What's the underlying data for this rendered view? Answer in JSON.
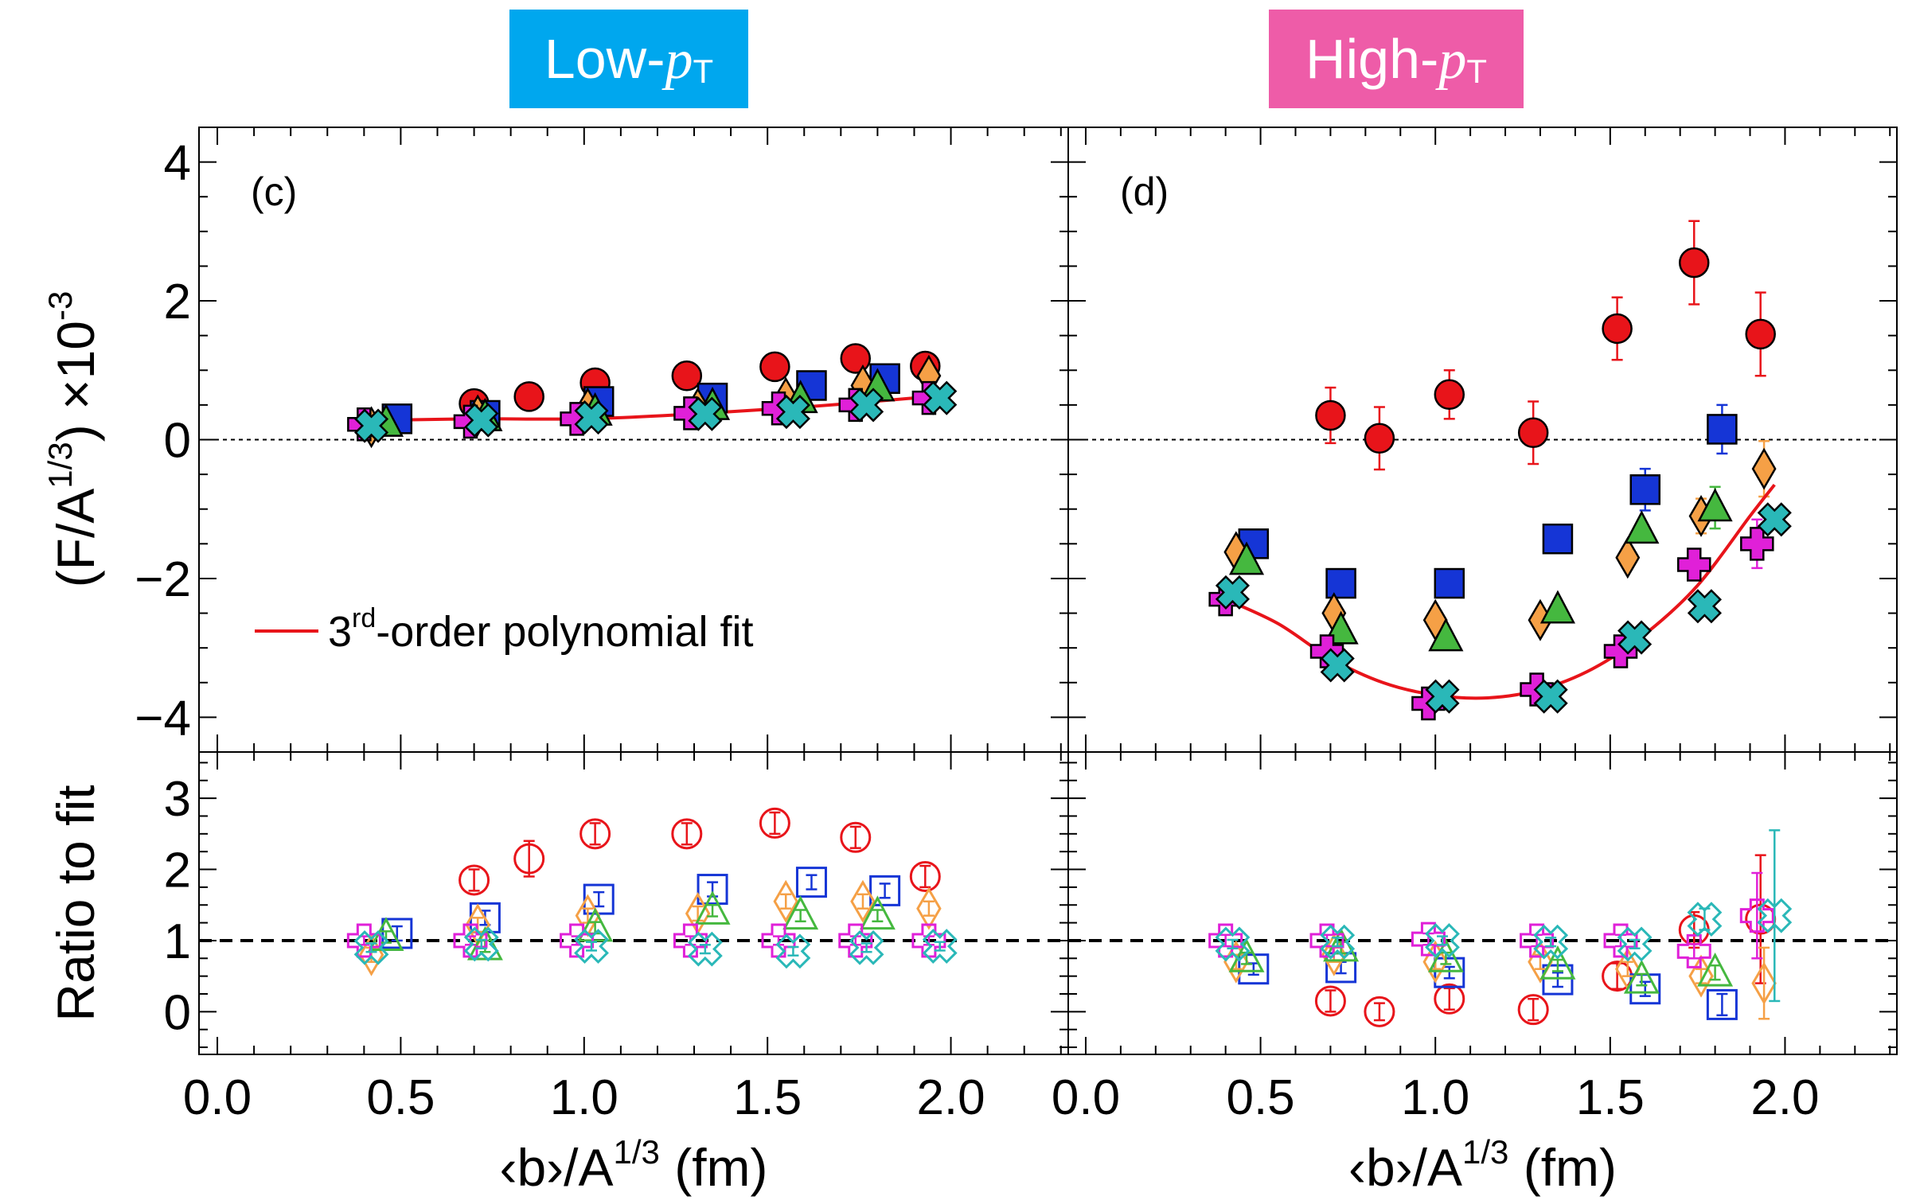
{
  "badges": {
    "low": {
      "prefix": "Low-",
      "var": "p",
      "sub": "T",
      "color": "#00a7ee"
    },
    "high": {
      "prefix": "High-",
      "var": "p",
      "sub": "T",
      "color": "#ee5ca8"
    }
  },
  "axes": {
    "ylabel_top": "(F/A^{1/3})  ×10^{-3}",
    "ylabel_top_parts": {
      "main": "(F/A",
      "sup1": "1/3",
      "close": ")",
      "times": "×10",
      "sup2": "-3"
    },
    "ylabel_bottom": "Ratio to fit",
    "xlabel": "<b>/A^{1/3} (fm)",
    "xlabel_parts": {
      "main": "‹b›/A",
      "sup": "1/3",
      "unit": " (fm)"
    },
    "x_range": [
      -0.05,
      2.32
    ],
    "top_y_range": [
      -4.5,
      4.5
    ],
    "bottom_y_range": [
      -0.6,
      3.65
    ],
    "x_ticks": [
      "0.0",
      "0.5",
      "1.0",
      "1.5",
      "2.0"
    ],
    "top_y_ticks": [
      "4",
      "2",
      "0",
      "−2",
      "−4"
    ],
    "bottom_y_ticks": [
      "3",
      "2",
      "1",
      "0"
    ]
  },
  "legend": {
    "fit_label": "3rd-order polynomial fit",
    "fit_label_parts": {
      "pre": "3",
      "sup": "rd",
      "post": "-order polynomial fit"
    }
  },
  "chart_data": {
    "type": "scatter",
    "series_styles": [
      {
        "key": "circle",
        "marker": "circle",
        "color": "#e8141a"
      },
      {
        "key": "square",
        "marker": "square",
        "color": "#1535d6"
      },
      {
        "key": "diamond",
        "marker": "diamond",
        "color": "#f5a046"
      },
      {
        "key": "triangle",
        "marker": "triangle",
        "color": "#45b83f"
      },
      {
        "key": "plus",
        "marker": "plus",
        "color": "#e020d8"
      },
      {
        "key": "cross",
        "marker": "cross",
        "color": "#2ab8b8"
      }
    ],
    "panels": [
      {
        "label": "(c)",
        "fit": {
          "x": [
            0.45,
            0.7,
            1.0,
            1.3,
            1.6,
            1.9
          ],
          "y": [
            0.28,
            0.3,
            0.3,
            0.37,
            0.47,
            0.6
          ]
        },
        "series": [
          {
            "key": "circle",
            "x": [
              0.7,
              0.85,
              1.03,
              1.28,
              1.52,
              1.74,
              1.93
            ],
            "y": [
              0.52,
              0.62,
              0.82,
              0.92,
              1.05,
              1.17,
              1.06
            ],
            "err": [
              0.06,
              0.06,
              0.06,
              0.06,
              0.06,
              0.06,
              0.06
            ]
          },
          {
            "key": "square",
            "x": [
              0.49,
              0.73,
              1.04,
              1.35,
              1.62,
              1.82
            ],
            "y": [
              0.3,
              0.35,
              0.55,
              0.6,
              0.78,
              0.88
            ],
            "err": [
              0.04,
              0.04,
              0.04,
              0.04,
              0.04,
              0.04
            ]
          },
          {
            "key": "diamond",
            "x": [
              0.42,
              0.71,
              1.01,
              1.31,
              1.55,
              1.76,
              1.94
            ],
            "y": [
              0.18,
              0.35,
              0.45,
              0.45,
              0.6,
              0.78,
              0.92
            ],
            "err": [
              0.04,
              0.04,
              0.04,
              0.04,
              0.04,
              0.04,
              0.04
            ]
          },
          {
            "key": "triangle",
            "x": [
              0.46,
              0.73,
              1.03,
              1.35,
              1.59,
              1.8
            ],
            "y": [
              0.24,
              0.32,
              0.4,
              0.48,
              0.58,
              0.75
            ],
            "err": [
              0.04,
              0.04,
              0.04,
              0.04,
              0.04,
              0.04
            ]
          },
          {
            "key": "plus",
            "x": [
              0.4,
              0.69,
              0.98,
              1.29,
              1.53,
              1.74,
              1.94
            ],
            "y": [
              0.22,
              0.26,
              0.3,
              0.38,
              0.45,
              0.5,
              0.6
            ],
            "err": [
              0.04,
              0.04,
              0.04,
              0.04,
              0.04,
              0.04,
              0.04
            ]
          },
          {
            "key": "cross",
            "x": [
              0.42,
              0.72,
              1.02,
              1.33,
              1.57,
              1.77,
              1.97
            ],
            "y": [
              0.2,
              0.28,
              0.32,
              0.37,
              0.4,
              0.5,
              0.6
            ],
            "err": [
              0.04,
              0.04,
              0.04,
              0.04,
              0.04,
              0.04,
              0.04
            ]
          }
        ],
        "ratio": [
          {
            "key": "circle",
            "x": [
              0.7,
              0.85,
              1.03,
              1.28,
              1.52,
              1.74,
              1.93
            ],
            "y": [
              1.85,
              2.15,
              2.5,
              2.5,
              2.65,
              2.45,
              1.9
            ],
            "err": [
              0.15,
              0.25,
              0.15,
              0.15,
              0.15,
              0.15,
              0.15
            ]
          },
          {
            "key": "square",
            "x": [
              0.49,
              0.73,
              1.04,
              1.35,
              1.62,
              1.82
            ],
            "y": [
              1.1,
              1.32,
              1.58,
              1.72,
              1.82,
              1.7
            ],
            "err": [
              0.1,
              0.1,
              0.1,
              0.1,
              0.1,
              0.1
            ]
          },
          {
            "key": "diamond",
            "x": [
              0.42,
              0.71,
              1.01,
              1.31,
              1.55,
              1.76,
              1.94
            ],
            "y": [
              0.8,
              1.22,
              1.35,
              1.38,
              1.55,
              1.55,
              1.45
            ],
            "err": [
              0.1,
              0.1,
              0.1,
              0.1,
              0.1,
              0.1,
              0.1
            ]
          },
          {
            "key": "triangle",
            "x": [
              0.46,
              0.73,
              1.03,
              1.35,
              1.59,
              1.8
            ],
            "y": [
              1.05,
              0.92,
              1.18,
              1.42,
              1.35,
              1.35
            ],
            "err": [
              0.08,
              0.08,
              0.08,
              0.08,
              0.08,
              0.08
            ]
          },
          {
            "key": "plus",
            "x": [
              0.4,
              0.69,
              0.98,
              1.29,
              1.53,
              1.74,
              1.94
            ],
            "y": [
              1.0,
              1.0,
              1.0,
              1.0,
              1.0,
              1.0,
              1.0
            ],
            "err": [
              0.06,
              0.06,
              0.06,
              0.06,
              0.06,
              0.06,
              0.06
            ]
          },
          {
            "key": "cross",
            "x": [
              0.42,
              0.72,
              1.02,
              1.33,
              1.57,
              1.77,
              1.97
            ],
            "y": [
              0.9,
              0.95,
              0.92,
              0.88,
              0.85,
              0.9,
              0.92
            ],
            "err": [
              0.06,
              0.06,
              0.06,
              0.06,
              0.06,
              0.06,
              0.06
            ]
          }
        ]
      },
      {
        "label": "(d)",
        "fit": {
          "x": [
            0.4,
            0.55,
            0.7,
            0.85,
            1.0,
            1.15,
            1.3,
            1.45,
            1.6,
            1.75,
            1.9,
            1.97
          ],
          "y": [
            -2.3,
            -2.65,
            -3.15,
            -3.5,
            -3.68,
            -3.72,
            -3.6,
            -3.3,
            -2.8,
            -2.1,
            -1.1,
            -0.65
          ]
        },
        "series": [
          {
            "key": "circle",
            "x": [
              0.7,
              0.84,
              1.04,
              1.28,
              1.52,
              1.74,
              1.93
            ],
            "y": [
              0.35,
              0.02,
              0.65,
              0.1,
              1.6,
              2.55,
              1.52
            ],
            "err": [
              0.4,
              0.45,
              0.35,
              0.45,
              0.45,
              0.6,
              0.6
            ]
          },
          {
            "key": "square",
            "x": [
              0.48,
              0.73,
              1.04,
              1.35,
              1.6,
              1.82
            ],
            "y": [
              -1.5,
              -2.07,
              -2.07,
              -1.43,
              -0.72,
              0.15
            ],
            "err": [
              0.2,
              0.2,
              0.15,
              0.2,
              0.3,
              0.35
            ]
          },
          {
            "key": "diamond",
            "x": [
              0.43,
              0.71,
              1.0,
              1.3,
              1.55,
              1.76,
              1.94
            ],
            "y": [
              -1.62,
              -2.5,
              -2.6,
              -2.6,
              -1.7,
              -1.1,
              -0.42
            ],
            "err": [
              0.15,
              0.2,
              0.15,
              0.15,
              0.15,
              0.25,
              0.4
            ]
          },
          {
            "key": "triangle",
            "x": [
              0.46,
              0.73,
              1.03,
              1.35,
              1.59,
              1.8
            ],
            "y": [
              -1.75,
              -2.75,
              -2.85,
              -2.45,
              -1.3,
              -0.98
            ],
            "err": [
              0.15,
              0.2,
              0.15,
              0.15,
              0.2,
              0.3
            ]
          },
          {
            "key": "plus",
            "x": [
              0.4,
              0.69,
              0.98,
              1.29,
              1.53,
              1.74,
              1.92
            ],
            "y": [
              -2.3,
              -3.05,
              -3.8,
              -3.6,
              -3.05,
              -1.8,
              -1.5
            ],
            "err": [
              0.15,
              0.15,
              0.15,
              0.15,
              0.15,
              0.2,
              0.35
            ]
          },
          {
            "key": "cross",
            "x": [
              0.42,
              0.72,
              1.02,
              1.33,
              1.57,
              1.77,
              1.97
            ],
            "y": [
              -2.2,
              -3.25,
              -3.7,
              -3.7,
              -2.85,
              -2.4,
              -1.15
            ],
            "err": [
              0.1,
              0.1,
              0.1,
              0.1,
              0.1,
              0.1,
              0.1
            ]
          }
        ],
        "ratio": [
          {
            "key": "circle",
            "x": [
              0.7,
              0.84,
              1.04,
              1.28,
              1.52,
              1.74,
              1.93
            ],
            "y": [
              0.15,
              0.0,
              0.18,
              0.03,
              0.5,
              1.15,
              1.3
            ],
            "err": [
              0.15,
              0.12,
              0.15,
              0.15,
              0.18,
              0.25,
              0.9
            ]
          },
          {
            "key": "square",
            "x": [
              0.48,
              0.73,
              1.04,
              1.35,
              1.6,
              1.82
            ],
            "y": [
              0.6,
              0.62,
              0.55,
              0.45,
              0.32,
              0.1
            ],
            "err": [
              0.08,
              0.08,
              0.08,
              0.1,
              0.1,
              0.15
            ]
          },
          {
            "key": "diamond",
            "x": [
              0.43,
              0.71,
              1.0,
              1.3,
              1.55,
              1.76,
              1.94
            ],
            "y": [
              0.7,
              0.8,
              0.7,
              0.7,
              0.6,
              0.5,
              0.4
            ],
            "err": [
              0.1,
              0.1,
              0.1,
              0.1,
              0.1,
              0.1,
              0.5
            ]
          },
          {
            "key": "triangle",
            "x": [
              0.46,
              0.73,
              1.03,
              1.35,
              1.59,
              1.8
            ],
            "y": [
              0.75,
              0.9,
              0.75,
              0.65,
              0.45,
              0.55
            ],
            "err": [
              0.08,
              0.08,
              0.08,
              0.08,
              0.08,
              0.1
            ]
          },
          {
            "key": "plus",
            "x": [
              0.4,
              0.69,
              0.98,
              1.29,
              1.53,
              1.74,
              1.92
            ],
            "y": [
              1.0,
              1.0,
              1.02,
              1.0,
              1.0,
              0.85,
              1.35
            ],
            "err": [
              0.08,
              0.08,
              0.08,
              0.08,
              0.08,
              0.1,
              0.6
            ]
          },
          {
            "key": "cross",
            "x": [
              0.42,
              0.72,
              1.02,
              1.33,
              1.57,
              1.77,
              1.97
            ],
            "y": [
              0.95,
              0.98,
              1.0,
              0.98,
              0.95,
              1.3,
              1.35
            ],
            "err": [
              0.06,
              0.06,
              0.06,
              0.06,
              0.06,
              0.15,
              1.2
            ]
          }
        ]
      }
    ]
  }
}
